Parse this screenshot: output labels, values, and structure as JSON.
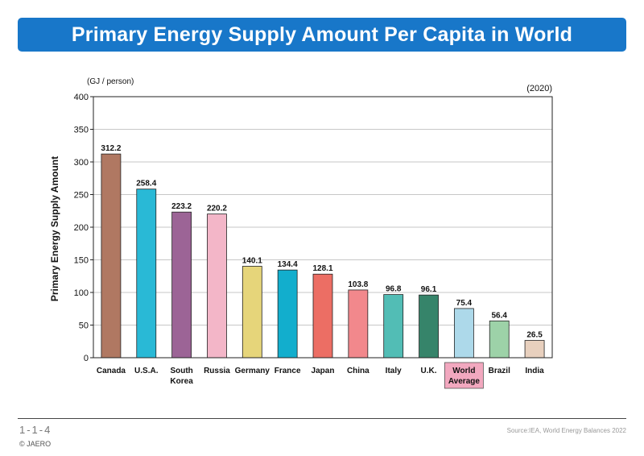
{
  "header": {
    "title": "Primary Energy Supply Amount Per Capita in World"
  },
  "chart_data": {
    "type": "bar",
    "unit_label": "(GJ / person)",
    "year_label": "(2020)",
    "ylabel": "Primary Energy Supply Amount",
    "ylim": [
      0,
      400
    ],
    "yticks": [
      0,
      50,
      100,
      150,
      200,
      250,
      300,
      350,
      400
    ],
    "grid": true,
    "categories": [
      {
        "label": "Canada"
      },
      {
        "label": "U.S.A."
      },
      {
        "label": "South",
        "label2": "Korea"
      },
      {
        "label": "Russia"
      },
      {
        "label": "Germany"
      },
      {
        "label": "France"
      },
      {
        "label": "Japan"
      },
      {
        "label": "China"
      },
      {
        "label": "Italy"
      },
      {
        "label": "U.K."
      },
      {
        "label": "World",
        "label2": "Average",
        "highlight": true
      },
      {
        "label": "Brazil"
      },
      {
        "label": "India"
      }
    ],
    "values": [
      312.2,
      258.4,
      223.2,
      220.2,
      140.1,
      134.4,
      128.1,
      103.8,
      96.8,
      96.1,
      75.4,
      56.4,
      26.5
    ],
    "value_labels": [
      "312.2",
      "258.4",
      "223.2",
      "220.2",
      "140.1",
      "134.4",
      "128.1",
      "103.8",
      "96.8",
      "96.1",
      "75.4",
      "56.4",
      "26.5"
    ],
    "colors": [
      "#b07862",
      "#29b9d6",
      "#9c6496",
      "#f3b6c8",
      "#e6d57a",
      "#12aecd",
      "#ec6e64",
      "#f2888c",
      "#52bdb5",
      "#36846a",
      "#add9ea",
      "#9dd2a8",
      "#e8d0be"
    ],
    "highlight_color": "#f2a8bf"
  },
  "footer": {
    "page": "1-1-4",
    "copyright": "© JAERO",
    "source": "Source:IEA, World Energy Balances 2022"
  }
}
